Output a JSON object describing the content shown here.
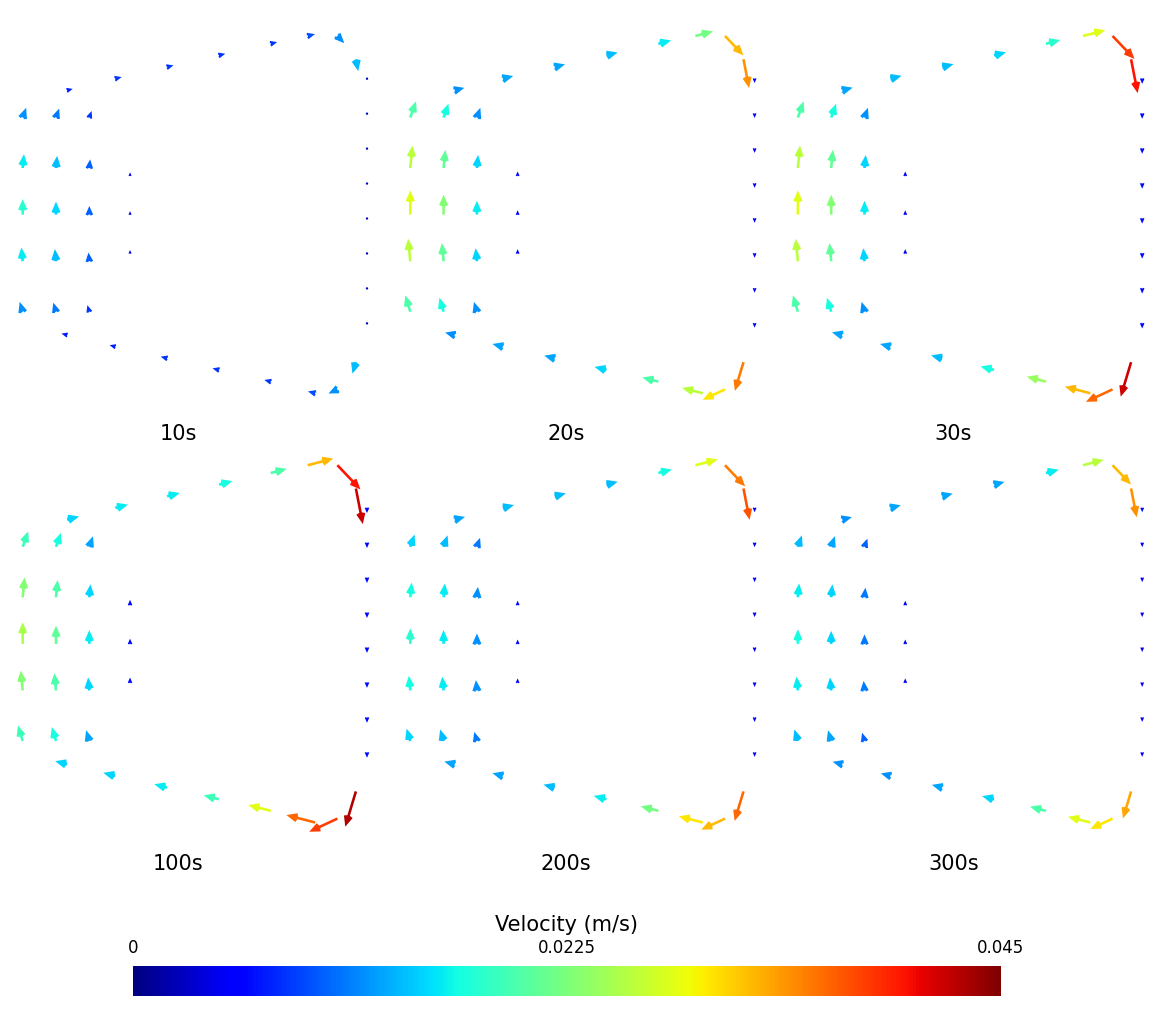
{
  "chart_data": {
    "type": "quiver",
    "xlim": [
      0,
      1
    ],
    "ylim": [
      0,
      1
    ],
    "tick_labels": false,
    "x": [
      0.03,
      0.03,
      0.03,
      0.03,
      0.03,
      0.12,
      0.12,
      0.12,
      0.12,
      0.12,
      0.21,
      0.21,
      0.21,
      0.21,
      0.21,
      0.32,
      0.32,
      0.32,
      0.15,
      0.28,
      0.42,
      0.56,
      0.7,
      0.8,
      0.88,
      0.93,
      0.96,
      0.96,
      0.96,
      0.96,
      0.96,
      0.96,
      0.96,
      0.96,
      0.93,
      0.88,
      0.82,
      0.7,
      0.56,
      0.42,
      0.28,
      0.15
    ],
    "y": [
      0.25,
      0.38,
      0.5,
      0.62,
      0.75,
      0.25,
      0.38,
      0.5,
      0.62,
      0.75,
      0.25,
      0.38,
      0.5,
      0.62,
      0.75,
      0.4,
      0.5,
      0.6,
      0.82,
      0.85,
      0.88,
      0.91,
      0.94,
      0.96,
      0.96,
      0.9,
      0.85,
      0.76,
      0.67,
      0.58,
      0.49,
      0.4,
      0.31,
      0.22,
      0.12,
      0.05,
      0.04,
      0.07,
      0.1,
      0.13,
      0.16,
      0.19
    ],
    "dx": [
      -0.3,
      -0.1,
      0,
      0.1,
      0.35,
      -0.3,
      -0.1,
      0,
      0.1,
      0.35,
      -0.3,
      -0.1,
      0,
      0.1,
      0.35,
      0,
      0,
      0,
      0.97,
      0.97,
      0.97,
      0.97,
      0.97,
      0.97,
      0.7,
      0.2,
      0,
      0,
      0,
      0,
      0,
      0,
      0,
      0,
      -0.3,
      -0.9,
      -0.97,
      -0.97,
      -0.97,
      -0.97,
      -0.97,
      -0.97
    ],
    "dy": [
      0.95,
      1,
      1,
      1,
      0.94,
      0.95,
      1,
      1,
      1,
      0.94,
      0.95,
      1,
      1,
      1,
      0.94,
      1,
      1,
      1,
      0.24,
      0.24,
      0.24,
      0.24,
      0.24,
      0.24,
      -0.7,
      -0.98,
      -1,
      -1,
      -1,
      -1,
      -1,
      -1,
      -1,
      -1,
      -0.95,
      -0.4,
      0.24,
      0.24,
      0.24,
      0.24,
      0.24,
      0.24
    ],
    "panels": [
      {
        "title": "10s",
        "speeds": [
          0.012,
          0.016,
          0.018,
          0.016,
          0.012,
          0.011,
          0.014,
          0.015,
          0.014,
          0.011,
          0.008,
          0.01,
          0.01,
          0.01,
          0.008,
          0.004,
          0.004,
          0.004,
          0.007,
          0.008,
          0.008,
          0.008,
          0.008,
          0.009,
          0.012,
          0.014,
          0.003,
          0.003,
          0.003,
          0.003,
          0.003,
          0.003,
          0.003,
          0.003,
          0.014,
          0.012,
          0.009,
          0.008,
          0.008,
          0.008,
          0.007,
          0.007
        ]
      },
      {
        "title": "20s",
        "speeds": [
          0.02,
          0.026,
          0.028,
          0.026,
          0.02,
          0.017,
          0.021,
          0.023,
          0.021,
          0.017,
          0.012,
          0.015,
          0.016,
          0.015,
          0.012,
          0.005,
          0.005,
          0.005,
          0.012,
          0.013,
          0.013,
          0.014,
          0.016,
          0.022,
          0.032,
          0.034,
          0.005,
          0.005,
          0.005,
          0.005,
          0.005,
          0.005,
          0.005,
          0.005,
          0.035,
          0.03,
          0.026,
          0.02,
          0.015,
          0.013,
          0.013,
          0.012
        ]
      },
      {
        "title": "30s",
        "speeds": [
          0.02,
          0.026,
          0.028,
          0.026,
          0.02,
          0.017,
          0.021,
          0.023,
          0.021,
          0.017,
          0.012,
          0.015,
          0.016,
          0.015,
          0.012,
          0.005,
          0.005,
          0.005,
          0.013,
          0.014,
          0.014,
          0.015,
          0.018,
          0.028,
          0.038,
          0.04,
          0.006,
          0.006,
          0.006,
          0.006,
          0.006,
          0.006,
          0.006,
          0.006,
          0.042,
          0.036,
          0.032,
          0.024,
          0.017,
          0.014,
          0.013,
          0.013
        ]
      },
      {
        "title": "100s",
        "speeds": [
          0.019,
          0.023,
          0.025,
          0.023,
          0.019,
          0.017,
          0.02,
          0.021,
          0.02,
          0.017,
          0.013,
          0.015,
          0.016,
          0.015,
          0.013,
          0.006,
          0.006,
          0.006,
          0.015,
          0.016,
          0.016,
          0.017,
          0.02,
          0.032,
          0.04,
          0.042,
          0.006,
          0.006,
          0.006,
          0.006,
          0.006,
          0.006,
          0.006,
          0.006,
          0.043,
          0.038,
          0.036,
          0.028,
          0.019,
          0.016,
          0.015,
          0.015
        ]
      },
      {
        "title": "200s",
        "speeds": [
          0.015,
          0.017,
          0.018,
          0.017,
          0.015,
          0.014,
          0.016,
          0.016,
          0.016,
          0.014,
          0.011,
          0.012,
          0.012,
          0.012,
          0.011,
          0.005,
          0.005,
          0.005,
          0.013,
          0.014,
          0.014,
          0.014,
          0.017,
          0.028,
          0.035,
          0.037,
          0.005,
          0.005,
          0.005,
          0.005,
          0.005,
          0.005,
          0.005,
          0.005,
          0.036,
          0.032,
          0.03,
          0.022,
          0.016,
          0.014,
          0.013,
          0.013
        ]
      },
      {
        "title": "300s",
        "speeds": [
          0.014,
          0.016,
          0.017,
          0.016,
          0.014,
          0.013,
          0.015,
          0.015,
          0.015,
          0.013,
          0.01,
          0.011,
          0.011,
          0.011,
          0.01,
          0.005,
          0.005,
          0.005,
          0.012,
          0.013,
          0.013,
          0.013,
          0.016,
          0.026,
          0.032,
          0.034,
          0.005,
          0.005,
          0.005,
          0.005,
          0.005,
          0.005,
          0.005,
          0.005,
          0.033,
          0.03,
          0.028,
          0.02,
          0.015,
          0.013,
          0.012,
          0.012
        ]
      }
    ],
    "colorbar": {
      "label": "Velocity (m/s)",
      "range": [
        0,
        0.045
      ],
      "ticks": [
        0,
        0.0225,
        0.045
      ]
    }
  }
}
